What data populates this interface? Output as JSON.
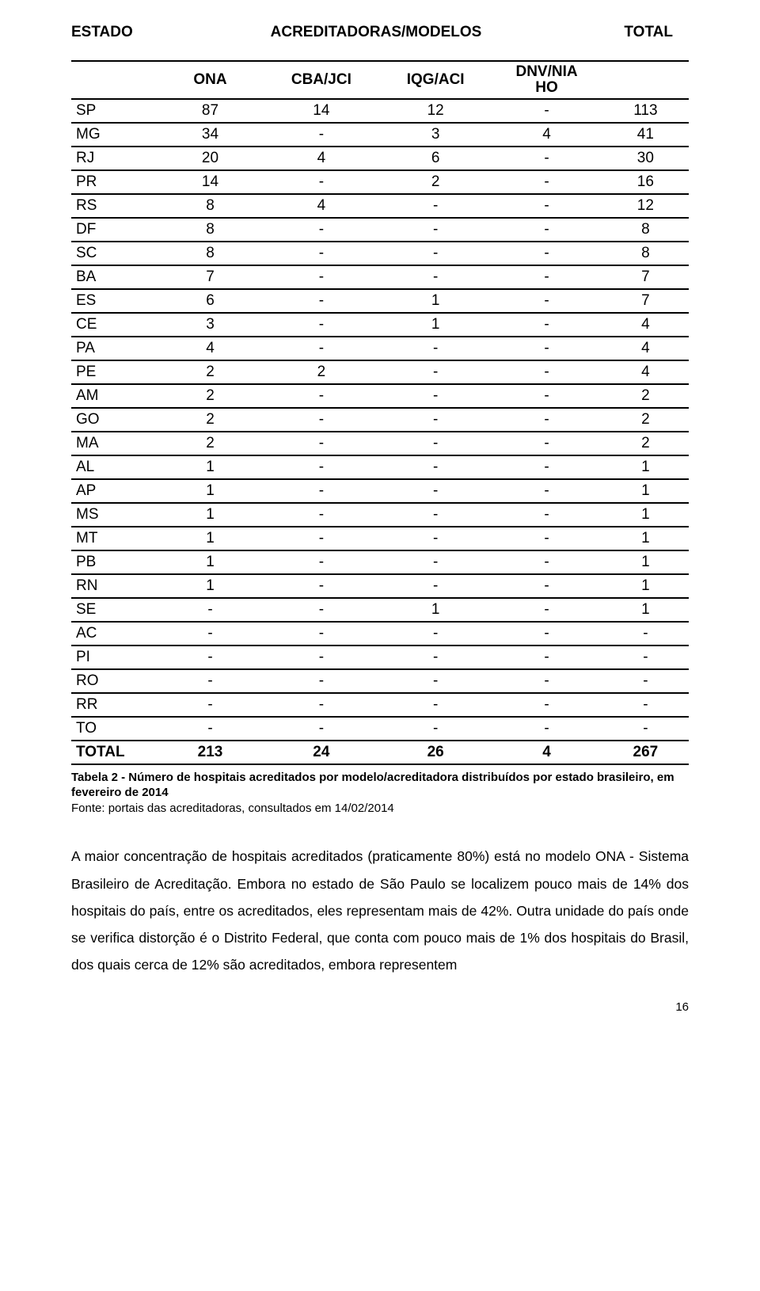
{
  "header": {
    "col1": "ESTADO",
    "col2": "ACREDITADORAS/MODELOS",
    "col3": "TOTAL"
  },
  "subheader": {
    "estado_blank": "",
    "c1": "ONA",
    "c2": "CBA/JCI",
    "c3": "IQG/ACI",
    "c4_line1": "DNV/NIA",
    "c4_line2": "HO",
    "total_blank": ""
  },
  "rows": [
    {
      "state": "SP",
      "ona": "87",
      "cba": "14",
      "iqg": "12",
      "dnv": "-",
      "total": "113"
    },
    {
      "state": "MG",
      "ona": "34",
      "cba": "-",
      "iqg": "3",
      "dnv": "4",
      "total": "41"
    },
    {
      "state": "RJ",
      "ona": "20",
      "cba": "4",
      "iqg": "6",
      "dnv": "-",
      "total": "30"
    },
    {
      "state": "PR",
      "ona": "14",
      "cba": "-",
      "iqg": "2",
      "dnv": "-",
      "total": "16"
    },
    {
      "state": "RS",
      "ona": "8",
      "cba": "4",
      "iqg": "-",
      "dnv": "-",
      "total": "12"
    },
    {
      "state": "DF",
      "ona": "8",
      "cba": "-",
      "iqg": "-",
      "dnv": "-",
      "total": "8"
    },
    {
      "state": "SC",
      "ona": "8",
      "cba": "-",
      "iqg": "-",
      "dnv": "-",
      "total": "8"
    },
    {
      "state": "BA",
      "ona": "7",
      "cba": "-",
      "iqg": "-",
      "dnv": "-",
      "total": "7"
    },
    {
      "state": "ES",
      "ona": "6",
      "cba": "-",
      "iqg": "1",
      "dnv": "-",
      "total": "7"
    },
    {
      "state": "CE",
      "ona": "3",
      "cba": "-",
      "iqg": "1",
      "dnv": "-",
      "total": "4"
    },
    {
      "state": "PA",
      "ona": "4",
      "cba": "-",
      "iqg": "-",
      "dnv": "-",
      "total": "4"
    },
    {
      "state": "PE",
      "ona": "2",
      "cba": "2",
      "iqg": "-",
      "dnv": "-",
      "total": "4"
    },
    {
      "state": "AM",
      "ona": "2",
      "cba": "-",
      "iqg": "-",
      "dnv": "-",
      "total": "2"
    },
    {
      "state": "GO",
      "ona": "2",
      "cba": "-",
      "iqg": "-",
      "dnv": "-",
      "total": "2"
    },
    {
      "state": "MA",
      "ona": "2",
      "cba": "-",
      "iqg": "-",
      "dnv": "-",
      "total": "2"
    },
    {
      "state": "AL",
      "ona": "1",
      "cba": "-",
      "iqg": "-",
      "dnv": "-",
      "total": "1"
    },
    {
      "state": "AP",
      "ona": "1",
      "cba": "-",
      "iqg": "-",
      "dnv": "-",
      "total": "1"
    },
    {
      "state": "MS",
      "ona": "1",
      "cba": "-",
      "iqg": "-",
      "dnv": "-",
      "total": "1"
    },
    {
      "state": "MT",
      "ona": "1",
      "cba": "-",
      "iqg": "-",
      "dnv": "-",
      "total": "1"
    },
    {
      "state": "PB",
      "ona": "1",
      "cba": "-",
      "iqg": "-",
      "dnv": "-",
      "total": "1"
    },
    {
      "state": "RN",
      "ona": "1",
      "cba": "-",
      "iqg": "-",
      "dnv": "-",
      "total": "1"
    },
    {
      "state": "SE",
      "ona": "-",
      "cba": "-",
      "iqg": "1",
      "dnv": "-",
      "total": "1"
    },
    {
      "state": "AC",
      "ona": "-",
      "cba": "-",
      "iqg": "-",
      "dnv": "-",
      "total": "-"
    },
    {
      "state": "PI",
      "ona": "-",
      "cba": "-",
      "iqg": "-",
      "dnv": "-",
      "total": "-"
    },
    {
      "state": "RO",
      "ona": "-",
      "cba": "-",
      "iqg": "-",
      "dnv": "-",
      "total": "-"
    },
    {
      "state": "RR",
      "ona": "-",
      "cba": "-",
      "iqg": "-",
      "dnv": "-",
      "total": "-"
    },
    {
      "state": "TO",
      "ona": "-",
      "cba": "-",
      "iqg": "-",
      "dnv": "-",
      "total": "-"
    }
  ],
  "totalrow": {
    "state": "TOTAL",
    "ona": "213",
    "cba": "24",
    "iqg": "26",
    "dnv": "4",
    "total": "267"
  },
  "caption": "Tabela 2 - Número de hospitais acreditados por modelo/acreditadora distribuídos por estado brasileiro, em fevereiro de 2014",
  "source": "Fonte: portais das acreditadoras, consultados em 14/02/2014",
  "paragraph": "A maior concentração de hospitais acreditados (praticamente 80%) está no modelo ONA - Sistema Brasileiro de Acreditação. Embora no estado de São Paulo se localizem pouco mais de 14% dos hospitais do país, entre os acreditados, eles representam mais de 42%. Outra unidade do país onde se verifica distorção é o Distrito Federal, que conta com pouco mais de 1% dos hospitais do Brasil, dos quais cerca de 12% são acreditados, embora representem",
  "page_number": "16",
  "table_style": {
    "border_color": "#000000",
    "font_size_pt": 14,
    "heading_weight": "bold",
    "col_widths_pct": [
      14,
      17,
      19,
      18,
      18,
      14
    ]
  }
}
